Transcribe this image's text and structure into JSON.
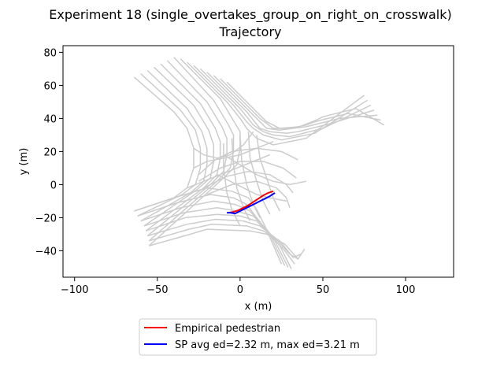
{
  "chart_data": {
    "type": "line",
    "title": "Experiment 18 (single_overtakes_group_on_right_on_crosswalk)",
    "subtitle": "Trajectory",
    "xlabel": "x (m)",
    "ylabel": "y (m)",
    "xlim": [
      -107,
      129
    ],
    "ylim": [
      -56,
      84
    ],
    "xticks": [
      -100,
      -50,
      0,
      50,
      100
    ],
    "yticks": [
      -40,
      -20,
      0,
      20,
      40,
      60,
      80
    ],
    "grid": false,
    "legend_position": "below",
    "background_color": "#cccccc",
    "background_paths": [
      [
        [
          -64,
          65
        ],
        [
          -40,
          44
        ],
        [
          -32,
          34
        ],
        [
          -28,
          22
        ],
        [
          -28,
          10
        ],
        [
          -32,
          -2
        ],
        [
          -40,
          -8
        ],
        [
          -64,
          -16
        ]
      ],
      [
        [
          -60,
          67
        ],
        [
          -36,
          45
        ],
        [
          -27,
          33
        ],
        [
          -24,
          22
        ],
        [
          -24,
          10
        ],
        [
          -27,
          0
        ],
        [
          -35,
          -6
        ],
        [
          -62,
          -19
        ]
      ],
      [
        [
          -56,
          69
        ],
        [
          -32,
          46
        ],
        [
          -23,
          32
        ],
        [
          -20,
          22
        ],
        [
          -20,
          12
        ],
        [
          -22,
          2
        ],
        [
          -30,
          -5
        ],
        [
          -60,
          -22
        ]
      ],
      [
        [
          -52,
          71
        ],
        [
          -28,
          48
        ],
        [
          -19,
          33
        ],
        [
          -16,
          24
        ],
        [
          -16,
          14
        ],
        [
          -18,
          4
        ],
        [
          -26,
          -3
        ],
        [
          -58,
          -25
        ]
      ],
      [
        [
          -48,
          73
        ],
        [
          -24,
          49
        ],
        [
          -15,
          34
        ],
        [
          -12,
          26
        ],
        [
          -12,
          16
        ],
        [
          -14,
          6
        ],
        [
          -22,
          -2
        ],
        [
          -57,
          -28
        ]
      ],
      [
        [
          -44,
          75
        ],
        [
          -20,
          50
        ],
        [
          -11,
          35
        ],
        [
          -8,
          28
        ],
        [
          -8,
          18
        ],
        [
          -10,
          8
        ],
        [
          -18,
          0
        ],
        [
          -56,
          -31
        ]
      ],
      [
        [
          -40,
          77
        ],
        [
          -16,
          51
        ],
        [
          -7,
          36
        ],
        [
          -4,
          30
        ],
        [
          -4,
          20
        ],
        [
          -6,
          10
        ],
        [
          -14,
          2
        ],
        [
          -55,
          -34
        ]
      ],
      [
        [
          -36,
          76
        ],
        [
          -12,
          52
        ],
        [
          -3,
          37
        ],
        [
          0,
          32
        ],
        [
          0,
          22
        ],
        [
          -2,
          12
        ],
        [
          -10,
          4
        ],
        [
          -55,
          -37
        ]
      ],
      [
        [
          -32,
          74
        ],
        [
          -8,
          50
        ],
        [
          0,
          40
        ],
        [
          4,
          34
        ],
        [
          10,
          28
        ],
        [
          20,
          24
        ],
        [
          40,
          28
        ],
        [
          75,
          54
        ]
      ],
      [
        [
          -28,
          72
        ],
        [
          -4,
          48
        ],
        [
          4,
          38
        ],
        [
          8,
          34
        ],
        [
          14,
          30
        ],
        [
          25,
          27
        ],
        [
          45,
          31
        ],
        [
          77,
          51
        ]
      ],
      [
        [
          -24,
          70
        ],
        [
          0,
          46
        ],
        [
          8,
          36
        ],
        [
          14,
          32
        ],
        [
          20,
          30
        ],
        [
          30,
          29
        ],
        [
          50,
          34
        ],
        [
          79,
          48
        ]
      ],
      [
        [
          -20,
          68
        ],
        [
          4,
          44
        ],
        [
          12,
          34
        ],
        [
          18,
          32
        ],
        [
          28,
          31
        ],
        [
          35,
          32
        ],
        [
          55,
          37
        ],
        [
          81,
          45
        ]
      ],
      [
        [
          -16,
          66
        ],
        [
          8,
          42
        ],
        [
          16,
          34
        ],
        [
          24,
          33
        ],
        [
          32,
          34
        ],
        [
          40,
          35
        ],
        [
          60,
          40
        ],
        [
          83,
          42
        ]
      ],
      [
        [
          -12,
          64
        ],
        [
          12,
          40
        ],
        [
          20,
          34
        ],
        [
          30,
          34
        ],
        [
          40,
          36
        ],
        [
          45,
          38
        ],
        [
          65,
          43
        ],
        [
          85,
          39
        ]
      ],
      [
        [
          -8,
          62
        ],
        [
          16,
          38
        ],
        [
          24,
          34
        ],
        [
          36,
          35
        ],
        [
          46,
          39
        ],
        [
          50,
          41
        ],
        [
          70,
          46
        ],
        [
          87,
          36
        ]
      ],
      [
        [
          -64,
          -16
        ],
        [
          -40,
          -8
        ],
        [
          -20,
          -2
        ],
        [
          -5,
          -4
        ],
        [
          5,
          -8
        ],
        [
          10,
          -15
        ],
        [
          15,
          -25
        ],
        [
          25,
          -48
        ]
      ],
      [
        [
          -62,
          -19
        ],
        [
          -38,
          -11
        ],
        [
          -18,
          -6
        ],
        [
          -4,
          -8
        ],
        [
          4,
          -12
        ],
        [
          10,
          -20
        ],
        [
          18,
          -30
        ],
        [
          27,
          -49
        ]
      ],
      [
        [
          -60,
          -22
        ],
        [
          -36,
          -14
        ],
        [
          -16,
          -10
        ],
        [
          -3,
          -12
        ],
        [
          6,
          -16
        ],
        [
          13,
          -24
        ],
        [
          21,
          -34
        ],
        [
          29,
          -50
        ]
      ],
      [
        [
          -58,
          -25
        ],
        [
          -34,
          -17
        ],
        [
          -14,
          -14
        ],
        [
          -2,
          -16
        ],
        [
          8,
          -19
        ],
        [
          16,
          -27
        ],
        [
          24,
          -37
        ],
        [
          31,
          -51
        ]
      ],
      [
        [
          -57,
          -28
        ],
        [
          -33,
          -20
        ],
        [
          -14,
          -18
        ],
        [
          0,
          -19
        ],
        [
          10,
          -22
        ],
        [
          18,
          -30
        ],
        [
          27,
          -40
        ],
        [
          33,
          -48
        ]
      ],
      [
        [
          -56,
          -31
        ],
        [
          -32,
          -24
        ],
        [
          -15,
          -21
        ],
        [
          2,
          -22
        ],
        [
          12,
          -25
        ],
        [
          21,
          -32
        ],
        [
          30,
          -42
        ],
        [
          35,
          -45
        ]
      ],
      [
        [
          -55,
          -34
        ],
        [
          -31,
          -27
        ],
        [
          -17,
          -24
        ],
        [
          4,
          -25
        ],
        [
          14,
          -28
        ],
        [
          24,
          -34
        ],
        [
          32,
          -44
        ],
        [
          37,
          -42
        ]
      ],
      [
        [
          -55,
          -37
        ],
        [
          -30,
          -30
        ],
        [
          -20,
          -27
        ],
        [
          6,
          -28
        ],
        [
          16,
          -30
        ],
        [
          27,
          -36
        ],
        [
          35,
          -45
        ],
        [
          39,
          -39
        ]
      ],
      [
        [
          -25,
          6
        ],
        [
          -15,
          15
        ],
        [
          -5,
          20
        ],
        [
          10,
          22
        ],
        [
          25,
          20
        ],
        [
          35,
          15
        ]
      ],
      [
        [
          -25,
          2
        ],
        [
          -12,
          10
        ],
        [
          0,
          14
        ],
        [
          14,
          14
        ],
        [
          26,
          10
        ],
        [
          34,
          4
        ]
      ],
      [
        [
          -22,
          -2
        ],
        [
          -8,
          5
        ],
        [
          5,
          8
        ],
        [
          18,
          6
        ],
        [
          28,
          0
        ],
        [
          32,
          -5
        ]
      ],
      [
        [
          -20,
          -6
        ],
        [
          -5,
          0
        ],
        [
          10,
          2
        ],
        [
          22,
          -2
        ],
        [
          28,
          -8
        ],
        [
          30,
          -14
        ]
      ],
      [
        [
          -10,
          25
        ],
        [
          -10,
          10
        ],
        [
          -8,
          -5
        ],
        [
          -5,
          -15
        ],
        [
          0,
          -25
        ]
      ],
      [
        [
          -5,
          28
        ],
        [
          -4,
          12
        ],
        [
          -2,
          -2
        ],
        [
          2,
          -14
        ],
        [
          6,
          -22
        ]
      ],
      [
        [
          0,
          30
        ],
        [
          1,
          14
        ],
        [
          4,
          0
        ],
        [
          8,
          -12
        ],
        [
          12,
          -20
        ]
      ],
      [
        [
          5,
          32
        ],
        [
          6,
          16
        ],
        [
          10,
          2
        ],
        [
          14,
          -10
        ],
        [
          18,
          -18
        ]
      ],
      [
        [
          10,
          30
        ],
        [
          12,
          16
        ],
        [
          16,
          4
        ],
        [
          20,
          -8
        ],
        [
          24,
          -16
        ]
      ],
      [
        [
          -28,
          22
        ],
        [
          -22,
          18
        ],
        [
          -14,
          16
        ],
        [
          -6,
          18
        ],
        [
          2,
          24
        ],
        [
          8,
          32
        ]
      ],
      [
        [
          -28,
          10
        ],
        [
          -20,
          14
        ],
        [
          -10,
          16
        ],
        [
          0,
          18
        ],
        [
          10,
          22
        ],
        [
          20,
          26
        ]
      ],
      [
        [
          -32,
          -2
        ],
        [
          -22,
          2
        ],
        [
          -12,
          6
        ],
        [
          -2,
          10
        ],
        [
          8,
          14
        ],
        [
          18,
          18
        ]
      ],
      [
        [
          -14,
          6
        ],
        [
          -6,
          2
        ],
        [
          2,
          -2
        ],
        [
          10,
          -6
        ],
        [
          18,
          -8
        ],
        [
          28,
          -10
        ]
      ],
      [
        [
          -10,
          18
        ],
        [
          0,
          12
        ],
        [
          10,
          6
        ],
        [
          20,
          2
        ],
        [
          30,
          0
        ],
        [
          40,
          2
        ]
      ]
    ],
    "series": [
      {
        "name": "Empirical pedestrian",
        "color": "#ff0000",
        "x": [
          -7,
          -4,
          -1,
          2,
          5,
          8,
          11,
          14,
          17,
          20
        ],
        "y": [
          -17,
          -16.5,
          -15.5,
          -14,
          -12.5,
          -10.5,
          -8.5,
          -6.5,
          -5,
          -4
        ]
      },
      {
        "name": "SP avg ed=2.32 m, max ed=3.21 m",
        "color": "#0000ff",
        "x": [
          -8,
          -6,
          -3,
          0,
          3,
          6,
          9,
          12,
          15,
          18,
          21
        ],
        "y": [
          -17,
          -17,
          -17.5,
          -16,
          -14.5,
          -13,
          -11.5,
          -10,
          -8.5,
          -7,
          -5
        ]
      }
    ]
  }
}
